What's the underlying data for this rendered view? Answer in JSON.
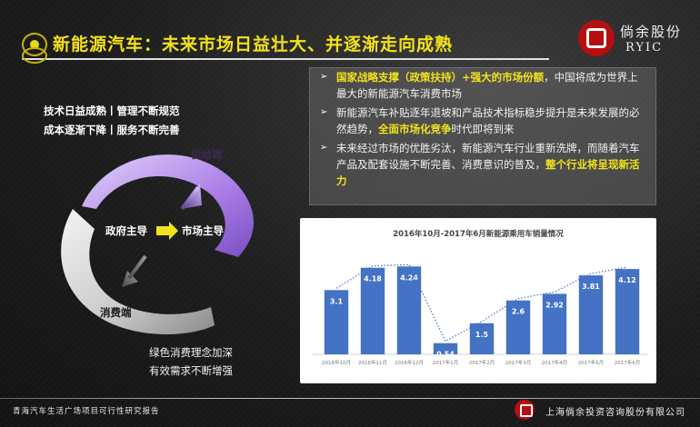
{
  "title": "新能源汽车：未来市场日益壮大、并逐渐走向成熟",
  "logo": {
    "cn": "倘余股份",
    "en": "RYIC"
  },
  "tags": [
    "技术日益成熟丨管理不断规范",
    "成本逐渐下降丨服务不断完善"
  ],
  "bullets": [
    {
      "segments": [
        {
          "text": "国家战略支撑（政策扶持）+强大的市场份额",
          "highlight": true
        },
        {
          "text": "，中国将成为世界上最大的新能源汽车消费市场",
          "highlight": false
        }
      ]
    },
    {
      "segments": [
        {
          "text": "新能源汽车补贴逐年退坡和产品技术指标稳步提升是未来发展的必然趋势，",
          "highlight": false
        },
        {
          "text": "全面市场化竞争",
          "highlight": true
        },
        {
          "text": "时代即将到来",
          "highlight": false
        }
      ]
    },
    {
      "segments": [
        {
          "text": "未来经过市场的优胜劣汰，新能源汽车行业重新洗牌，而随着汽车产品及配套设施不断完善、消费意识的普及，",
          "highlight": false
        },
        {
          "text": "整个行业将呈现新活力",
          "highlight": true
        }
      ]
    }
  ],
  "diagram": {
    "supply": "供给端",
    "government": "政府主导",
    "market": "市场主导",
    "consumer": "消费端"
  },
  "consumer_notes": [
    "绿色消费理念加深",
    "有效需求不断增强"
  ],
  "colors": {
    "accent": "#f2e21b",
    "supply_ring": "#a97be6",
    "consumer_ring": "#c8c8c8",
    "bar": "#4472c4",
    "line": "#4472c4"
  },
  "chart_data": {
    "type": "bar",
    "title": "2016年10月-2017年6月新能源乘用车销量情况",
    "categories": [
      "2016年10月",
      "2016年11月",
      "2016年12月",
      "2017年1月",
      "2017年2月",
      "2017年3月",
      "2017年4月",
      "2017年5月",
      "2017年6月"
    ],
    "values": [
      3.1,
      4.18,
      4.24,
      0.54,
      1.5,
      2.6,
      2.92,
      3.81,
      4.12
    ],
    "data_labels": [
      "3.1",
      "4.18",
      "4.24",
      "0.54",
      "1.5",
      "2.6",
      "2.92",
      "3.81",
      "4.12"
    ],
    "trend_line": true,
    "trend_style": "dotted",
    "ylim": [
      0,
      5
    ],
    "grid": false,
    "legend": "none"
  },
  "footer": {
    "left": "青海汽车生活广场项目可行性研究报告",
    "right": "上海倘余投资咨询股份有限公司"
  }
}
